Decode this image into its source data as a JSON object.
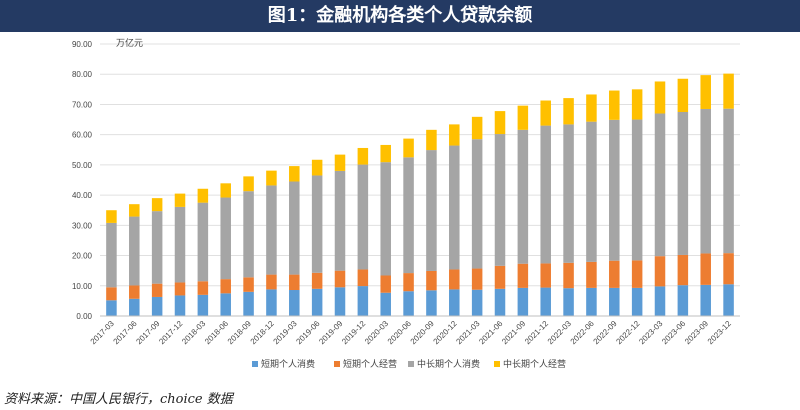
{
  "title": "图1：金融机构各类个人贷款余额",
  "source": "资料来源：中国人民银行，choice 数据",
  "colors": {
    "title_bg": "#243a63",
    "s1": "#5b9bd5",
    "s2": "#ed7d31",
    "s3": "#a5a5a5",
    "s4": "#ffc000"
  },
  "chart_data": {
    "type": "bar",
    "stacked": true,
    "ylabel": "万亿元",
    "ylim": [
      0,
      90
    ],
    "ytick_step": 10,
    "yticks": [
      "0.00",
      "10.00",
      "20.00",
      "30.00",
      "40.00",
      "50.00",
      "60.00",
      "70.00",
      "80.00",
      "90.00"
    ],
    "categories": [
      "2017-03",
      "2017-06",
      "2017-09",
      "2017-12",
      "2018-03",
      "2018-06",
      "2018-09",
      "2018-12",
      "2019-03",
      "2019-06",
      "2019-09",
      "2019-12",
      "2020-03",
      "2020-06",
      "2020-09",
      "2020-12",
      "2021-03",
      "2021-06",
      "2021-09",
      "2021-12",
      "2022-03",
      "2022-06",
      "2022-09",
      "2022-12",
      "2023-03",
      "2023-06",
      "2023-09",
      "2023-12"
    ],
    "legend_position": "bottom",
    "series": [
      {
        "name": "短期个人消费",
        "color": "#5b9bd5",
        "values": [
          5.2,
          5.7,
          6.3,
          6.8,
          7.0,
          7.5,
          8.0,
          8.8,
          8.6,
          9.0,
          9.5,
          9.9,
          7.7,
          8.2,
          8.5,
          8.8,
          8.7,
          9.0,
          9.3,
          9.4,
          9.2,
          9.3,
          9.3,
          9.3,
          9.8,
          10.2,
          10.3,
          10.5
        ]
      },
      {
        "name": "短期个人经营",
        "color": "#ed7d31",
        "values": [
          4.3,
          4.4,
          4.4,
          4.3,
          4.5,
          4.7,
          4.8,
          4.9,
          5.1,
          5.3,
          5.5,
          5.5,
          5.7,
          6.0,
          6.4,
          6.6,
          7.0,
          7.6,
          8.0,
          8.0,
          8.4,
          8.6,
          9.0,
          9.1,
          10.0,
          10.0,
          10.4,
          10.3
        ]
      },
      {
        "name": "中长期个人消费",
        "color": "#a5a5a5",
        "values": [
          21.3,
          22.8,
          24.0,
          25.0,
          26.0,
          27.0,
          28.5,
          29.5,
          30.8,
          32.2,
          33.0,
          34.7,
          37.5,
          38.3,
          40.0,
          41.0,
          42.8,
          43.6,
          44.3,
          45.6,
          45.8,
          46.4,
          46.6,
          46.6,
          47.2,
          47.3,
          47.8,
          47.8
        ]
      },
      {
        "name": "中长期个人经营",
        "color": "#ffc000",
        "values": [
          4.2,
          4.1,
          4.3,
          4.4,
          4.6,
          4.7,
          4.9,
          4.9,
          5.1,
          5.2,
          5.4,
          5.5,
          5.7,
          6.2,
          6.7,
          7.0,
          7.4,
          7.6,
          8.0,
          8.3,
          8.7,
          9.0,
          9.7,
          10.0,
          10.6,
          11.0,
          11.2,
          11.6
        ]
      }
    ]
  }
}
